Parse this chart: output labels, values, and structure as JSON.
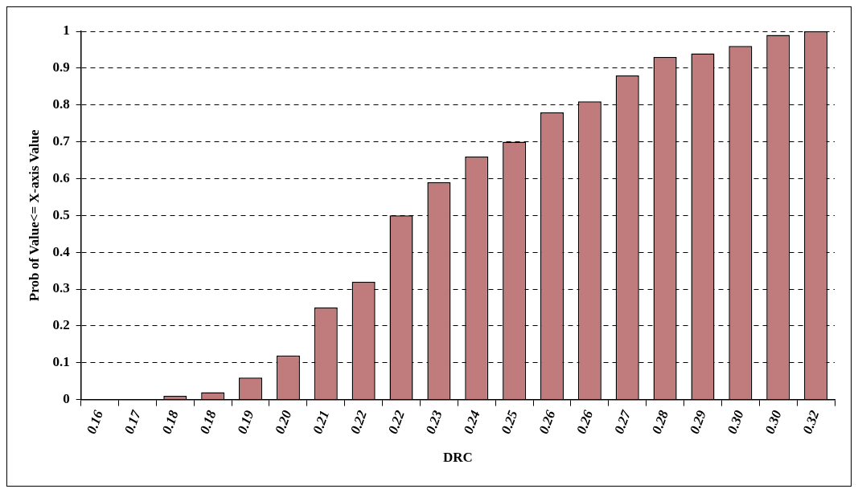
{
  "chart_data": {
    "type": "bar",
    "xlabel": "DRC",
    "ylabel": "Prob of Value<= X-axis Value",
    "categories": [
      "0.16",
      "0.17",
      "0.18",
      "0.18",
      "0.19",
      "0.20",
      "0.21",
      "0.22",
      "0.22",
      "0.23",
      "0.24",
      "0.25",
      "0.26",
      "0.26",
      "0.27",
      "0.28",
      "0.29",
      "0.30",
      "0.30",
      "0.32"
    ],
    "values": [
      0,
      0,
      0.01,
      0.02,
      0.06,
      0.12,
      0.25,
      0.32,
      0.5,
      0.59,
      0.66,
      0.7,
      0.78,
      0.81,
      0.88,
      0.93,
      0.94,
      0.96,
      0.99,
      1
    ],
    "color": "#c07c7c",
    "ylim": [
      0,
      1
    ],
    "yticks": [
      0,
      0.1,
      0.2,
      0.3,
      0.4,
      0.5,
      0.6,
      0.7,
      0.8,
      0.9,
      1
    ],
    "grid": "y",
    "legend": false
  }
}
